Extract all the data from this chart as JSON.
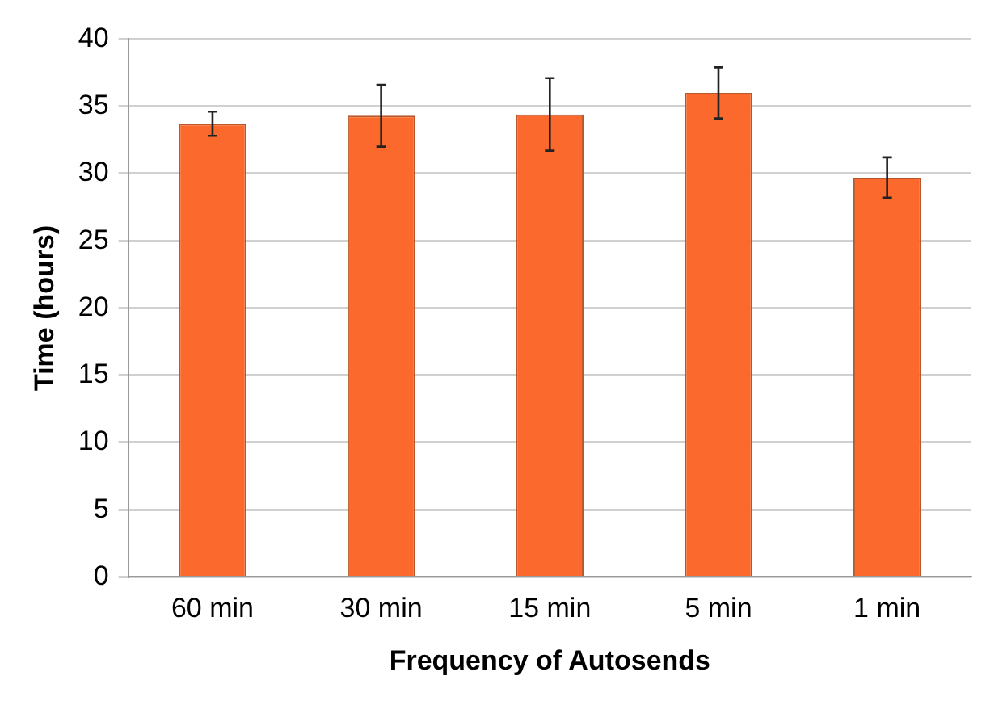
{
  "chart_data": {
    "type": "bar",
    "xlabel": "Frequency of Autosends",
    "ylabel": "Time (hours)",
    "categories": [
      "60 min",
      "30 min",
      "15 min",
      "5 min",
      "1 min"
    ],
    "values": [
      33.7,
      34.3,
      34.4,
      36.0,
      29.7
    ],
    "errors": [
      0.9,
      2.3,
      2.7,
      1.9,
      1.5
    ],
    "color": "#fb6a2c",
    "ylim": [
      0,
      40
    ],
    "yticks": [
      0,
      5,
      10,
      15,
      20,
      25,
      30,
      35,
      40
    ],
    "grid": "y"
  }
}
